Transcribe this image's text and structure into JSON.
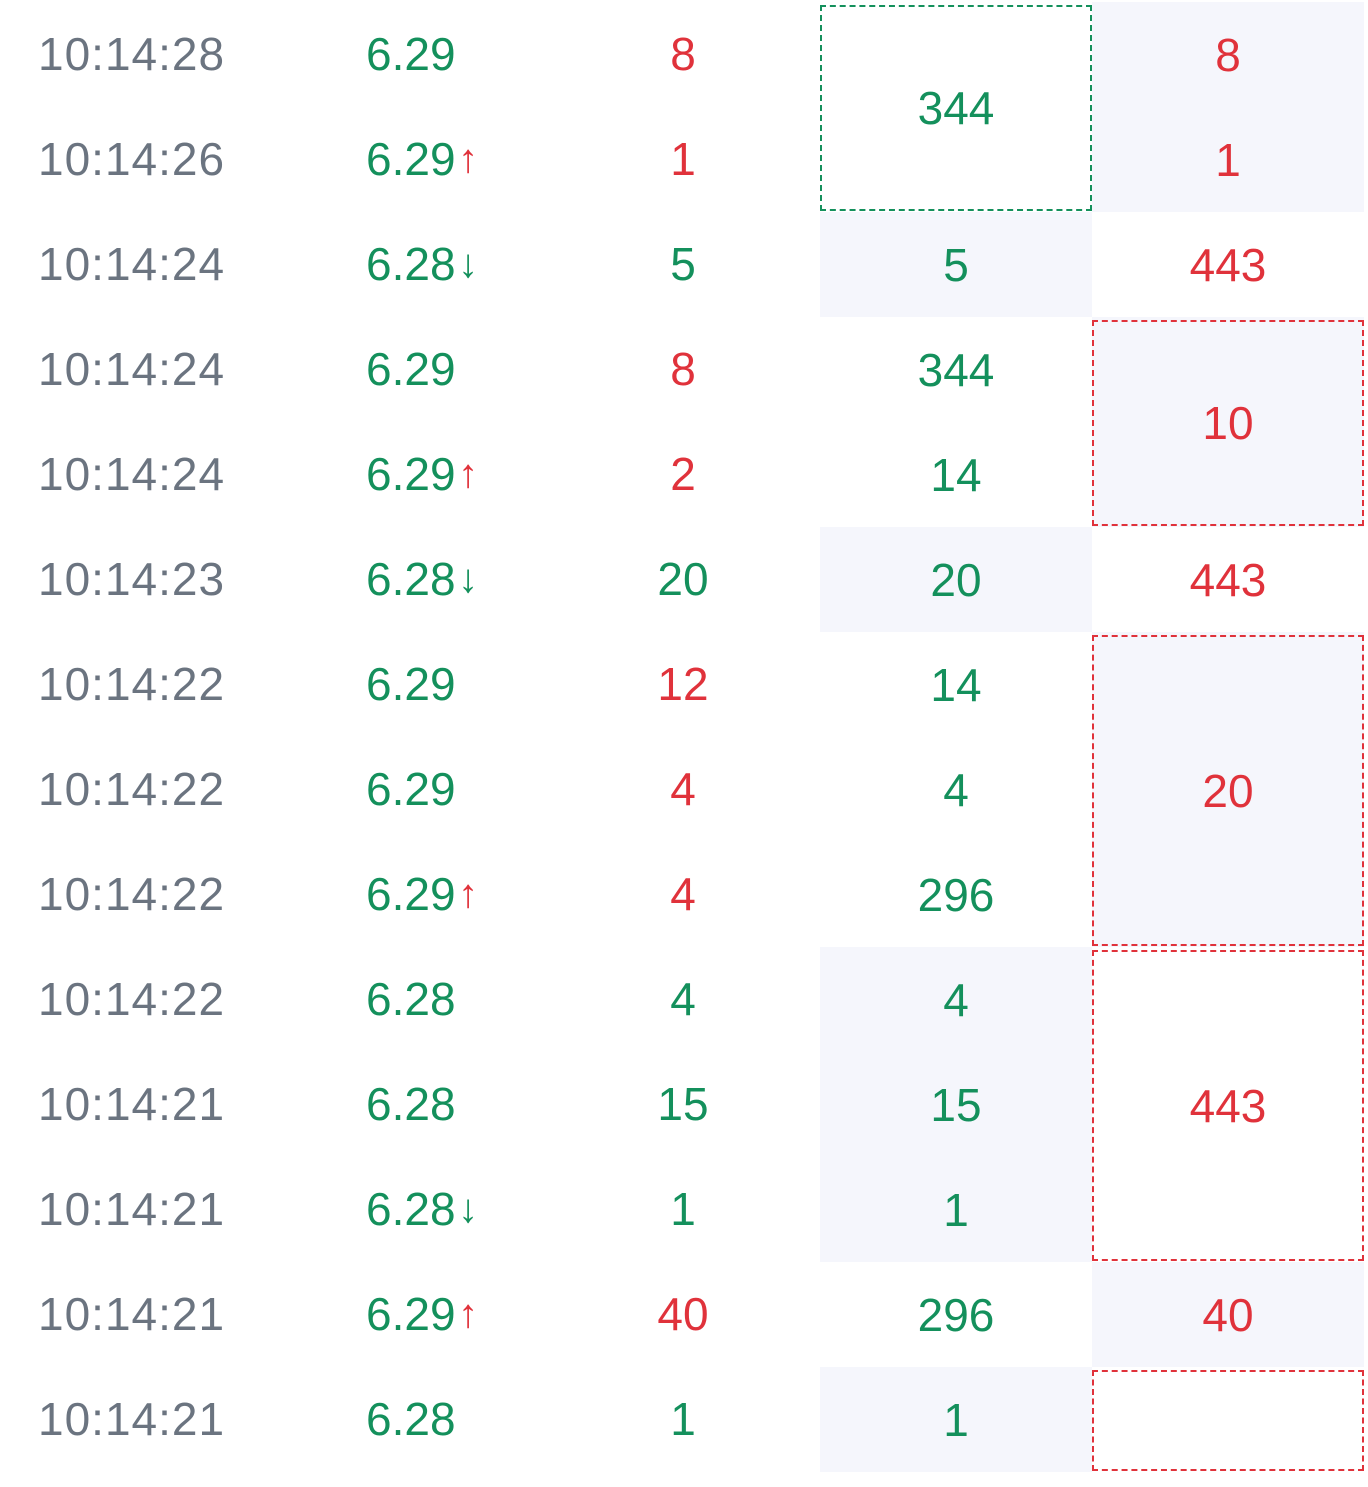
{
  "rows": [
    {
      "time": "10:14:28",
      "price": "6.29",
      "arrow": "",
      "arrow_dir": "",
      "vol": "8",
      "vol_color": "red"
    },
    {
      "time": "10:14:26",
      "price": "6.29",
      "arrow": "↑",
      "arrow_dir": "up",
      "vol": "1",
      "vol_color": "red"
    },
    {
      "time": "10:14:24",
      "price": "6.28",
      "arrow": "↓",
      "arrow_dir": "down",
      "vol": "5",
      "vol_color": "green"
    },
    {
      "time": "10:14:24",
      "price": "6.29",
      "arrow": "",
      "arrow_dir": "",
      "vol": "8",
      "vol_color": "red"
    },
    {
      "time": "10:14:24",
      "price": "6.29",
      "arrow": "↑",
      "arrow_dir": "up",
      "vol": "2",
      "vol_color": "red"
    },
    {
      "time": "10:14:23",
      "price": "6.28",
      "arrow": "↓",
      "arrow_dir": "down",
      "vol": "20",
      "vol_color": "green"
    },
    {
      "time": "10:14:22",
      "price": "6.29",
      "arrow": "",
      "arrow_dir": "",
      "vol": "12",
      "vol_color": "red"
    },
    {
      "time": "10:14:22",
      "price": "6.29",
      "arrow": "",
      "arrow_dir": "",
      "vol": "4",
      "vol_color": "red"
    },
    {
      "time": "10:14:22",
      "price": "6.29",
      "arrow": "↑",
      "arrow_dir": "up",
      "vol": "4",
      "vol_color": "red"
    },
    {
      "time": "10:14:22",
      "price": "6.28",
      "arrow": "",
      "arrow_dir": "",
      "vol": "4",
      "vol_color": "green"
    },
    {
      "time": "10:14:21",
      "price": "6.28",
      "arrow": "",
      "arrow_dir": "",
      "vol": "15",
      "vol_color": "green"
    },
    {
      "time": "10:14:21",
      "price": "6.28",
      "arrow": "↓",
      "arrow_dir": "down",
      "vol": "1",
      "vol_color": "green"
    },
    {
      "time": "10:14:21",
      "price": "6.29",
      "arrow": "↑",
      "arrow_dir": "up",
      "vol": "40",
      "vol_color": "red"
    },
    {
      "time": "10:14:21",
      "price": "6.28",
      "arrow": "",
      "arrow_dir": "",
      "vol": "1",
      "vol_color": "green"
    }
  ],
  "col4": [
    {
      "start": 0,
      "span": 2,
      "value": "344",
      "color": "green",
      "shaded": false,
      "dashed": true
    },
    {
      "start": 2,
      "span": 1,
      "value": "5",
      "color": "green",
      "shaded": true,
      "dashed": false
    },
    {
      "start": 3,
      "span": 1,
      "value": "344",
      "color": "green",
      "shaded": false,
      "dashed": false
    },
    {
      "start": 4,
      "span": 1,
      "value": "14",
      "color": "green",
      "shaded": false,
      "dashed": false
    },
    {
      "start": 5,
      "span": 1,
      "value": "20",
      "color": "green",
      "shaded": true,
      "dashed": false
    },
    {
      "start": 6,
      "span": 1,
      "value": "14",
      "color": "green",
      "shaded": false,
      "dashed": false
    },
    {
      "start": 7,
      "span": 1,
      "value": "4",
      "color": "green",
      "shaded": false,
      "dashed": false
    },
    {
      "start": 8,
      "span": 1,
      "value": "296",
      "color": "green",
      "shaded": false,
      "dashed": false
    },
    {
      "start": 9,
      "span": 1,
      "value": "4",
      "color": "green",
      "shaded": true,
      "dashed": false
    },
    {
      "start": 10,
      "span": 1,
      "value": "15",
      "color": "green",
      "shaded": true,
      "dashed": false
    },
    {
      "start": 11,
      "span": 1,
      "value": "1",
      "color": "green",
      "shaded": true,
      "dashed": false
    },
    {
      "start": 12,
      "span": 1,
      "value": "296",
      "color": "green",
      "shaded": false,
      "dashed": false
    },
    {
      "start": 13,
      "span": 1,
      "value": "1",
      "color": "green",
      "shaded": true,
      "dashed": false
    }
  ],
  "col5": [
    {
      "start": 0,
      "span": 1,
      "value": "8",
      "color": "red",
      "shaded": true,
      "dashed": false
    },
    {
      "start": 1,
      "span": 1,
      "value": "1",
      "color": "red",
      "shaded": true,
      "dashed": false
    },
    {
      "start": 2,
      "span": 1,
      "value": "443",
      "color": "red",
      "shaded": false,
      "dashed": false
    },
    {
      "start": 3,
      "span": 2,
      "value": "10",
      "color": "red",
      "shaded": true,
      "dashed": true
    },
    {
      "start": 5,
      "span": 1,
      "value": "443",
      "color": "red",
      "shaded": false,
      "dashed": false
    },
    {
      "start": 6,
      "span": 3,
      "value": "20",
      "color": "red",
      "shaded": true,
      "dashed": true
    },
    {
      "start": 9,
      "span": 3,
      "value": "443",
      "color": "red",
      "shaded": false,
      "dashed": true
    },
    {
      "start": 12,
      "span": 1,
      "value": "40",
      "color": "red",
      "shaded": true,
      "dashed": false
    },
    {
      "start": 13,
      "span": 1,
      "value": "",
      "color": "red",
      "shaded": false,
      "dashed": true
    }
  ]
}
